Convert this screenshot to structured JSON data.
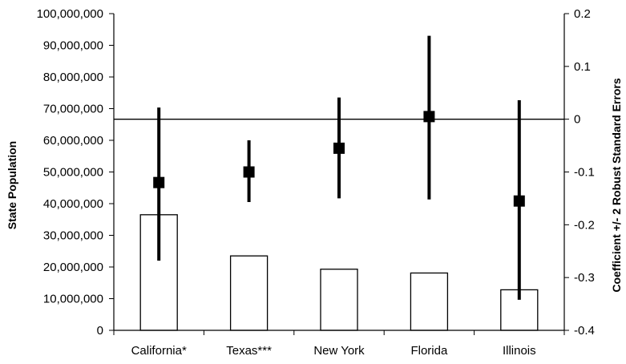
{
  "chart_data": {
    "type": "bar",
    "categories": [
      "California*",
      "Texas***",
      "New York",
      "Florida",
      "Illinois"
    ],
    "series": [
      {
        "values": [
          36500000,
          23500000,
          19300000,
          18100000,
          12800000
        ]
      },
      {
        "values": [
          -0.12,
          -0.1,
          -0.055,
          0.005,
          -0.155
        ],
        "lower": [
          -0.268,
          -0.157,
          -0.15,
          -0.152,
          -0.342
        ],
        "upper": [
          0.022,
          -0.04,
          0.041,
          0.158,
          0.036
        ]
      }
    ],
    "ylabel": "State Population",
    "y2label": "Coefficient +/- 2 Robust Standard Errors",
    "ylim": [
      0,
      100000000
    ],
    "y2lim": [
      -0.4,
      0.2
    ],
    "yticks": [
      "0",
      "10,000,000",
      "20,000,000",
      "30,000,000",
      "40,000,000",
      "50,000,000",
      "60,000,000",
      "70,000,000",
      "80,000,000",
      "90,000,000",
      "100,000,000"
    ],
    "y2ticks": [
      "-0.4",
      "-0.3",
      "-0.2",
      "-0.1",
      "0",
      "0.1",
      "0.2"
    ],
    "reference_line_y2": 0,
    "grid": false,
    "legend": "none"
  }
}
